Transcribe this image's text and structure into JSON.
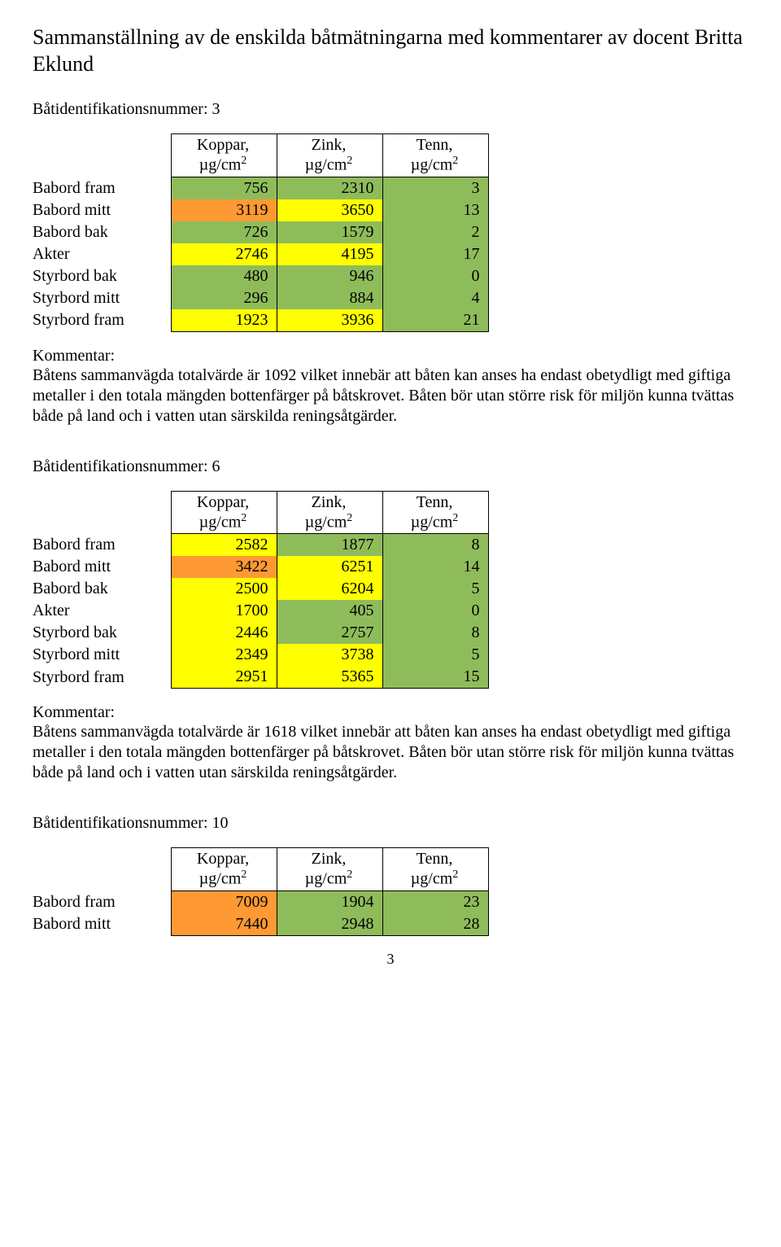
{
  "colors": {
    "green": "#8fbc5a",
    "yellow": "#ffff00",
    "orange": "#ff9933"
  },
  "page_title": "Sammanställning av de enskilda båtmätningarna med kommentarer av docent Britta Eklund",
  "table_headers": {
    "koppar": "Koppar,",
    "zink": "Zink,",
    "tenn": "Tenn,",
    "unit": "µg/cm"
  },
  "row_labels": [
    "Babord fram",
    "Babord mitt",
    "Babord bak",
    "Akter",
    "Styrbord bak",
    "Styrbord mitt",
    "Styrbord fram"
  ],
  "comment_label": "Kommentar:",
  "sections": [
    {
      "id_label": "Båtidentifikationsnummer: 3",
      "rows": [
        {
          "label": "Babord fram",
          "koppar": "756",
          "zink": "2310",
          "tenn": "3",
          "c": [
            "green",
            "green",
            "green"
          ]
        },
        {
          "label": "Babord mitt",
          "koppar": "3119",
          "zink": "3650",
          "tenn": "13",
          "c": [
            "orange",
            "yellow",
            "green"
          ]
        },
        {
          "label": "Babord bak",
          "koppar": "726",
          "zink": "1579",
          "tenn": "2",
          "c": [
            "green",
            "green",
            "green"
          ]
        },
        {
          "label": "Akter",
          "koppar": "2746",
          "zink": "4195",
          "tenn": "17",
          "c": [
            "yellow",
            "yellow",
            "green"
          ]
        },
        {
          "label": "Styrbord bak",
          "koppar": "480",
          "zink": "946",
          "tenn": "0",
          "c": [
            "green",
            "green",
            "green"
          ]
        },
        {
          "label": "Styrbord mitt",
          "koppar": "296",
          "zink": "884",
          "tenn": "4",
          "c": [
            "green",
            "green",
            "green"
          ]
        },
        {
          "label": "Styrbord fram",
          "koppar": "1923",
          "zink": "3936",
          "tenn": "21",
          "c": [
            "yellow",
            "yellow",
            "green"
          ]
        }
      ],
      "comment": "Båtens sammanvägda totalvärde är 1092 vilket innebär att båten kan anses ha endast obetydligt med giftiga metaller i den totala mängden bottenfärger på båtskrovet. Båten bör utan större risk för miljön kunna tvättas både på land och i vatten utan särskilda reningsåtgärder."
    },
    {
      "id_label": "Båtidentifikationsnummer:  6",
      "rows": [
        {
          "label": "Babord fram",
          "koppar": "2582",
          "zink": "1877",
          "tenn": "8",
          "c": [
            "yellow",
            "green",
            "green"
          ]
        },
        {
          "label": "Babord mitt",
          "koppar": "3422",
          "zink": "6251",
          "tenn": "14",
          "c": [
            "orange",
            "yellow",
            "green"
          ]
        },
        {
          "label": "Babord bak",
          "koppar": "2500",
          "zink": "6204",
          "tenn": "5",
          "c": [
            "yellow",
            "yellow",
            "green"
          ]
        },
        {
          "label": "Akter",
          "koppar": "1700",
          "zink": "405",
          "tenn": "0",
          "c": [
            "yellow",
            "green",
            "green"
          ]
        },
        {
          "label": "Styrbord bak",
          "koppar": "2446",
          "zink": "2757",
          "tenn": "8",
          "c": [
            "yellow",
            "green",
            "green"
          ]
        },
        {
          "label": "Styrbord mitt",
          "koppar": "2349",
          "zink": "3738",
          "tenn": "5",
          "c": [
            "yellow",
            "yellow",
            "green"
          ]
        },
        {
          "label": "Styrbord fram",
          "koppar": "2951",
          "zink": "5365",
          "tenn": "15",
          "c": [
            "yellow",
            "yellow",
            "green"
          ]
        }
      ],
      "comment": "Båtens sammanvägda totalvärde är 1618 vilket innebär att båten kan anses ha endast obetydligt med giftiga metaller i den totala mängden bottenfärger på båtskrovet. Båten bör utan större risk för miljön kunna tvättas både på land och i vatten utan särskilda reningsåtgärder."
    },
    {
      "id_label": "Båtidentifikationsnummer: 10",
      "rows": [
        {
          "label": "Babord fram",
          "koppar": "7009",
          "zink": "1904",
          "tenn": "23",
          "c": [
            "orange",
            "green",
            "green"
          ]
        },
        {
          "label": "Babord mitt",
          "koppar": "7440",
          "zink": "2948",
          "tenn": "28",
          "c": [
            "orange",
            "green",
            "green"
          ]
        }
      ],
      "comment": null
    }
  ],
  "page_number": "3"
}
